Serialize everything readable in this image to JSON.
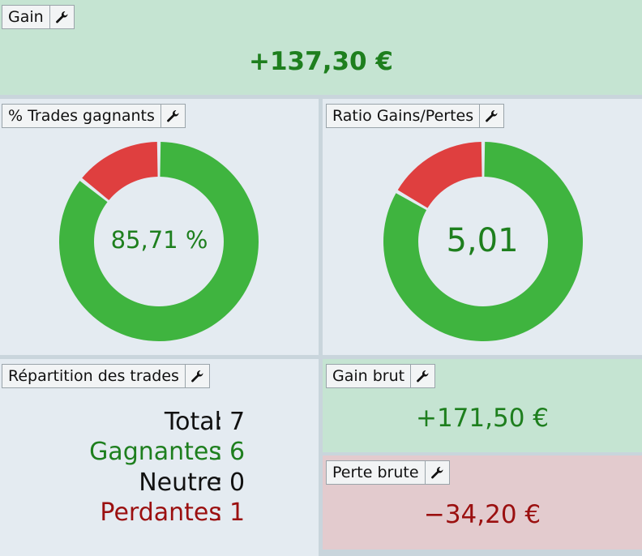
{
  "gain": {
    "title": "Gain",
    "value": "+137,30 €"
  },
  "win_rate": {
    "title": "% Trades gagnants",
    "value": "85,71 %",
    "win_fraction": 0.8571
  },
  "ratio": {
    "title": "Ratio Gains/Pertes",
    "value": "5,01",
    "win_fraction": 0.8336
  },
  "distribution": {
    "title": "Répartition des trades",
    "separator": ":",
    "rows": [
      {
        "label": "Total",
        "value": "7"
      },
      {
        "label": "Gagnantes",
        "value": "6"
      },
      {
        "label": "Neutre",
        "value": "0"
      },
      {
        "label": "Perdantes",
        "value": "1"
      }
    ]
  },
  "gross_gain": {
    "title": "Gain brut",
    "value": "+171,50 €"
  },
  "gross_loss": {
    "title": "Perte brute",
    "value": "−34,20 €"
  },
  "colors": {
    "win": "#3fb43f",
    "loss": "#df3f3f",
    "positive_text": "#1e7f1e",
    "negative_text": "#9b1010"
  },
  "icons": {
    "settings": "wrench-icon"
  }
}
